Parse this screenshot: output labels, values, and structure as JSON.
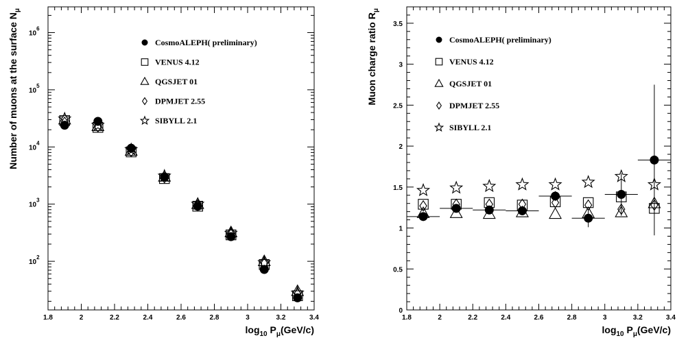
{
  "chart_data": [
    {
      "type": "scatter",
      "xlabel": {
        "main": "log",
        "sub": "10",
        "mid": " P",
        "sub2": "μ",
        "tail": "(GeV/c)"
      },
      "ylabel": {
        "main": "Number of muons at the surface N",
        "sub": "μ"
      },
      "log_y": true,
      "xlim": [
        1.8,
        3.4
      ],
      "ylim_log10": [
        1.15,
        6.45
      ],
      "xticks": [
        "1.8",
        "2",
        "2.2",
        "2.4",
        "2.6",
        "2.8",
        "3",
        "3.2",
        "3.4"
      ],
      "yticks": [
        {
          "base": "10",
          "exp": "2",
          "log10": 2
        },
        {
          "base": "10",
          "exp": "3",
          "log10": 3
        },
        {
          "base": "10",
          "exp": "4",
          "log10": 4
        },
        {
          "base": "10",
          "exp": "5",
          "log10": 5
        },
        {
          "base": "10",
          "exp": "6",
          "log10": 6
        }
      ],
      "legend_position": "top-right",
      "legend": [
        "CosmoALEPH( preliminary)",
        "VENUS 4.12",
        "QGSJET 01",
        "DPMJET 2.55",
        "SIBYLL 2.1"
      ],
      "series": [
        {
          "name": "CosmoALEPH( preliminary)",
          "marker": "filled-circle",
          "x": [
            1.9,
            2.1,
            2.3,
            2.5,
            2.7,
            2.9,
            3.1,
            3.3
          ],
          "y": [
            24000,
            28000,
            9500,
            3000,
            920,
            270,
            72,
            23
          ]
        },
        {
          "name": "VENUS 4.12",
          "marker": "open-square",
          "x": [
            1.9,
            2.1,
            2.3,
            2.5,
            2.7,
            2.9,
            3.1,
            3.3
          ],
          "y": [
            29000,
            22000,
            8200,
            2800,
            920,
            290,
            88,
            25
          ]
        },
        {
          "name": "QGSJET 01",
          "marker": "open-triangle",
          "x": [
            1.9,
            2.1,
            2.3,
            2.5,
            2.7,
            2.9,
            3.1,
            3.3
          ],
          "y": [
            30000,
            23000,
            8500,
            3000,
            1000,
            320,
            100,
            30
          ]
        },
        {
          "name": "DPMJET 2.55",
          "marker": "open-diamond",
          "x": [
            1.9,
            2.1,
            2.3,
            2.5,
            2.7,
            2.9,
            3.1,
            3.3
          ],
          "y": [
            27000,
            22500,
            8300,
            2900,
            950,
            300,
            92,
            27
          ]
        },
        {
          "name": "SIBYLL 2.1",
          "marker": "open-star",
          "x": [
            1.9,
            2.1,
            2.3,
            2.5,
            2.7,
            2.9,
            3.1,
            3.3
          ],
          "y": [
            31000,
            24000,
            9000,
            3100,
            1000,
            310,
            95,
            28
          ]
        }
      ]
    },
    {
      "type": "scatter",
      "xlabel": {
        "main": "log",
        "sub": "10",
        "mid": " P",
        "sub2": "μ",
        "tail": "(GeV/c)"
      },
      "ylabel": {
        "main": "Muon charge ratio R",
        "sub": "μ"
      },
      "log_y": false,
      "xlim": [
        1.8,
        3.4
      ],
      "ylim": [
        0,
        3.7
      ],
      "xticks": [
        "1.8",
        "2",
        "2.2",
        "2.4",
        "2.6",
        "2.8",
        "3",
        "3.2",
        "3.4"
      ],
      "yticks": [
        "0",
        "0.5",
        "1",
        "1.5",
        "2",
        "2.5",
        "3",
        "3.5"
      ],
      "legend_position": "top-left",
      "legend": [
        "CosmoALEPH( preliminary)",
        "VENUS 4.12",
        "QGSJET 01",
        "DPMJET 2.55",
        "SIBYLL 2.1"
      ],
      "series": [
        {
          "name": "CosmoALEPH( preliminary)",
          "marker": "filled-circle",
          "x": [
            1.9,
            2.1,
            2.3,
            2.5,
            2.7,
            2.9,
            3.1,
            3.3
          ],
          "y": [
            1.14,
            1.24,
            1.22,
            1.21,
            1.39,
            1.12,
            1.41,
            1.83
          ],
          "y_err": [
            0.02,
            0.04,
            0.04,
            0.05,
            0.06,
            0.11,
            0.26,
            0.92
          ],
          "x_halfwidth": [
            0.1,
            0.1,
            0.1,
            0.1,
            0.1,
            0.1,
            0.1,
            0.1
          ]
        },
        {
          "name": "VENUS 4.12",
          "marker": "open-square",
          "x": [
            1.9,
            2.1,
            2.3,
            2.5,
            2.7,
            2.9,
            3.1,
            3.3
          ],
          "y": [
            1.29,
            1.29,
            1.31,
            1.28,
            1.32,
            1.31,
            1.38,
            1.24
          ]
        },
        {
          "name": "QGSJET 01",
          "marker": "open-triangle",
          "x": [
            1.9,
            2.1,
            2.3,
            2.5,
            2.7,
            2.9,
            3.1,
            3.3
          ],
          "y": [
            1.18,
            1.18,
            1.17,
            1.19,
            1.17,
            1.18,
            1.19,
            1.3
          ]
        },
        {
          "name": "DPMJET 2.55",
          "marker": "open-diamond",
          "x": [
            1.9,
            2.1,
            2.3,
            2.5,
            2.7,
            2.9,
            3.1,
            3.3
          ],
          "y": [
            1.27,
            1.29,
            1.29,
            1.29,
            1.31,
            1.28,
            1.23,
            1.28
          ]
        },
        {
          "name": "SIBYLL 2.1",
          "marker": "open-star",
          "x": [
            1.9,
            2.1,
            2.3,
            2.5,
            2.7,
            2.9,
            3.1,
            3.3
          ],
          "y": [
            1.46,
            1.49,
            1.51,
            1.53,
            1.53,
            1.56,
            1.63,
            1.53
          ]
        }
      ]
    }
  ]
}
